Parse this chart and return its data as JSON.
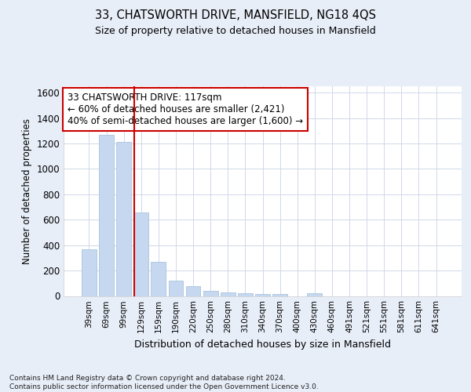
{
  "title1": "33, CHATSWORTH DRIVE, MANSFIELD, NG18 4QS",
  "title2": "Size of property relative to detached houses in Mansfield",
  "xlabel": "Distribution of detached houses by size in Mansfield",
  "ylabel": "Number of detached properties",
  "categories": [
    "39sqm",
    "69sqm",
    "99sqm",
    "129sqm",
    "159sqm",
    "190sqm",
    "220sqm",
    "250sqm",
    "280sqm",
    "310sqm",
    "340sqm",
    "370sqm",
    "400sqm",
    "430sqm",
    "460sqm",
    "491sqm",
    "521sqm",
    "551sqm",
    "581sqm",
    "611sqm",
    "641sqm"
  ],
  "values": [
    370,
    1270,
    1215,
    660,
    270,
    120,
    75,
    40,
    30,
    20,
    18,
    15,
    0,
    22,
    0,
    0,
    0,
    0,
    0,
    0,
    0
  ],
  "bar_color": "#c5d8f0",
  "bar_edge_color": "#a0bcd8",
  "vline_color": "#cc0000",
  "annotation_text": "33 CHATSWORTH DRIVE: 117sqm\n← 60% of detached houses are smaller (2,421)\n40% of semi-detached houses are larger (1,600) →",
  "annotation_box_color": "#ffffff",
  "annotation_box_edge": "#cc0000",
  "ylim": [
    0,
    1650
  ],
  "yticks": [
    0,
    200,
    400,
    600,
    800,
    1000,
    1200,
    1400,
    1600
  ],
  "footnote": "Contains HM Land Registry data © Crown copyright and database right 2024.\nContains public sector information licensed under the Open Government Licence v3.0.",
  "bg_color": "#e8eef8",
  "plot_bg_color": "#ffffff"
}
